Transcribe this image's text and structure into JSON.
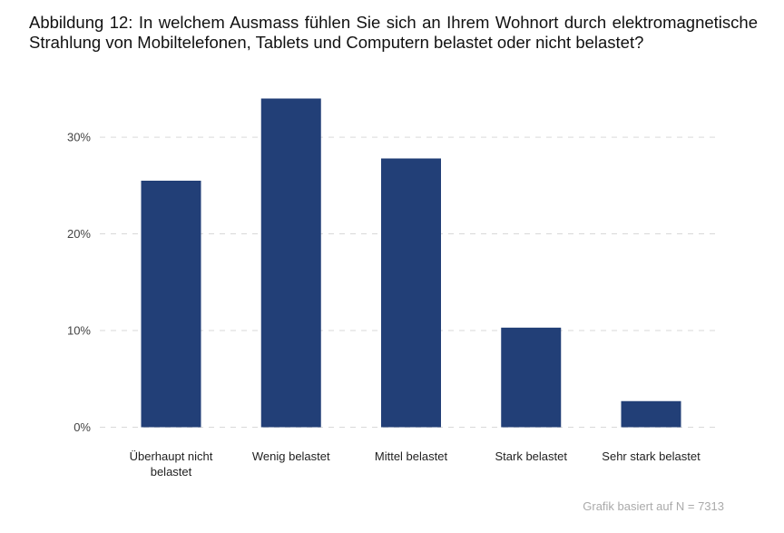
{
  "title": "Abbildung 12: In welchem Ausmass fühlen Sie sich an Ihrem Wohnort durch elektromagnetische Strahlung von Mobiltelefonen, Tablets und Computern belastet oder nicht belastet?",
  "caption": "Grafik basiert auf N = 7313",
  "colors": {
    "bar": "#223f77",
    "grid": "#d9d9d9"
  },
  "chart_data": {
    "type": "bar",
    "categories": [
      [
        "Überhaupt nicht",
        "belastet"
      ],
      [
        "Wenig belastet"
      ],
      [
        "Mittel belastet"
      ],
      [
        "Stark belastet"
      ],
      [
        "Sehr stark belastet"
      ]
    ],
    "values": [
      25.5,
      34.0,
      27.8,
      10.3,
      2.7
    ],
    "ylim": [
      0,
      34
    ],
    "yticks": [
      0,
      10,
      20,
      30
    ],
    "ytick_labels": [
      "0%",
      "10%",
      "20%",
      "30%"
    ],
    "grid": "horizontal dashed",
    "legend": "none"
  }
}
